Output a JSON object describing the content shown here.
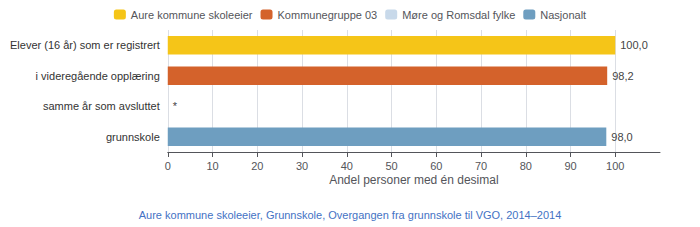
{
  "chart_data": {
    "type": "bar",
    "orientation": "horizontal",
    "categories": [
      "Elever (16 år) som er registrert",
      "i videregående opplæring",
      "samme år som avsluttet",
      "grunnskole"
    ],
    "series": [
      {
        "name": "Aure kommune skoleeier",
        "color": "#f5c518",
        "values": [
          100.0,
          null,
          null,
          null
        ],
        "value_labels": [
          "100,0",
          null,
          null,
          null
        ]
      },
      {
        "name": "Kommunegruppe 03",
        "color": "#d4622b",
        "values": [
          null,
          98.2,
          null,
          null
        ],
        "value_labels": [
          null,
          "98,2",
          null,
          null
        ]
      },
      {
        "name": "Møre og Romsdal fylke",
        "color": "#c8d9ea",
        "values": [
          null,
          null,
          null,
          null
        ],
        "value_labels": [
          null,
          null,
          "*",
          null
        ]
      },
      {
        "name": "Nasjonalt",
        "color": "#6e9ec0",
        "values": [
          null,
          null,
          null,
          98.0
        ],
        "value_labels": [
          null,
          null,
          null,
          "98,0"
        ]
      }
    ],
    "xlabel": "Andel personer med én desimal",
    "xlim": [
      0,
      110
    ],
    "xticks": [
      0,
      10,
      20,
      30,
      40,
      50,
      60,
      70,
      80,
      90,
      100
    ],
    "grid": true,
    "data_labels": true,
    "legend": "top",
    "annotations": [
      "Aure kommune skoleeier, Grunnskole, Overgangen fra grunnskole til VGO, 2014–2014"
    ]
  }
}
